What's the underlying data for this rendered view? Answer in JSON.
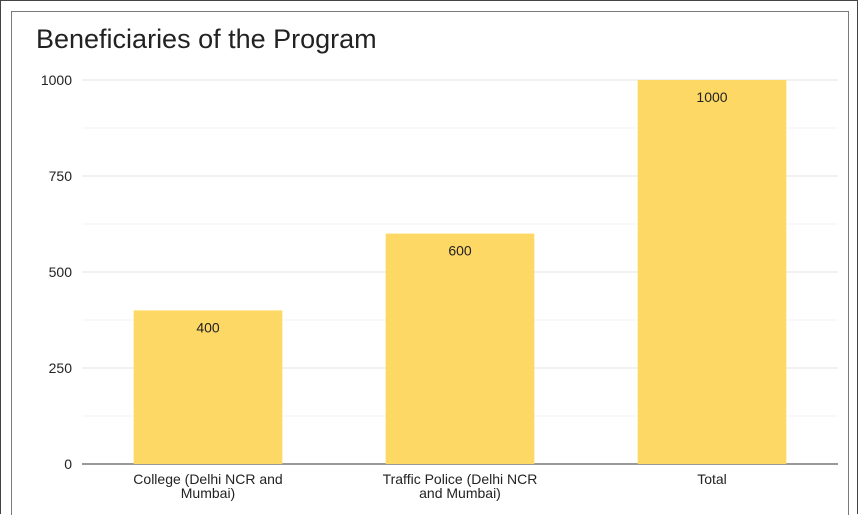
{
  "chart_data": {
    "type": "bar",
    "title": "Beneficiaries of the Program",
    "categories": [
      [
        "College (Delhi NCR and",
        "Mumbai)"
      ],
      [
        "Traffic Police (Delhi NCR",
        "and Mumbai)"
      ],
      [
        "Total"
      ]
    ],
    "values": [
      400,
      600,
      1000
    ],
    "data_labels": [
      "400",
      "600",
      "1000"
    ],
    "yticks": [
      "0",
      "250",
      "500",
      "750",
      "1000"
    ],
    "ylim": [
      0,
      1000
    ],
    "grid": true,
    "legend": "none",
    "bar_color": "#fed865"
  }
}
